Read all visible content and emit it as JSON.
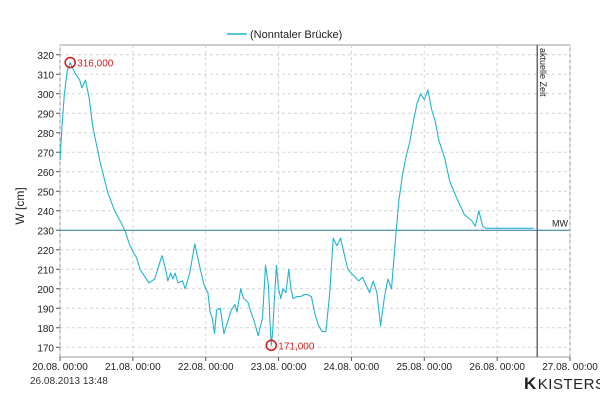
{
  "footer": {
    "timestamp": "26.08.2013  13:48",
    "logo_mark": "K",
    "logo_text": "KISTERS"
  },
  "chart_data": {
    "type": "line",
    "title": "",
    "legend": "(Nonntaler Brücke)",
    "legend_position": "top",
    "xlabel": "",
    "ylabel": "W [cm]",
    "grid": true,
    "xlim": [
      0,
      7
    ],
    "ylim": [
      165,
      325
    ],
    "x_tick_labels": [
      "20.08. 00:00",
      "21.08. 00:00",
      "22.08. 00:00",
      "23.08. 00:00",
      "24.08. 00:00",
      "25.08. 00:00",
      "26.08. 00:00",
      "27.08. 00:00"
    ],
    "y_ticks": [
      170,
      180,
      190,
      200,
      210,
      220,
      230,
      240,
      250,
      260,
      270,
      280,
      290,
      300,
      310,
      320
    ],
    "colors": {
      "series": "#22b4d0",
      "mw_line": "#2f7fa0",
      "current_time_line": "#555555",
      "annotation": "#d42020"
    },
    "mw_line": {
      "value": 230,
      "label": "MW"
    },
    "current_time_line": {
      "x": 6.55,
      "label": "aktuelle Zeit"
    },
    "annotations": [
      {
        "x": 0.14,
        "y": 316,
        "label": "316,000",
        "kind": "max"
      },
      {
        "x": 2.9,
        "y": 171,
        "label": "171,000",
        "kind": "min"
      }
    ],
    "series": [
      {
        "name": "(Nonntaler Brücke)",
        "x": [
          0,
          0.03,
          0.06,
          0.1,
          0.14,
          0.2,
          0.27,
          0.3,
          0.35,
          0.4,
          0.45,
          0.55,
          0.65,
          0.75,
          0.85,
          0.9,
          0.95,
          1.0,
          1.05,
          1.1,
          1.15,
          1.22,
          1.3,
          1.4,
          1.45,
          1.48,
          1.52,
          1.55,
          1.58,
          1.62,
          1.68,
          1.72,
          1.78,
          1.85,
          1.92,
          1.97,
          2.0,
          2.03,
          2.06,
          2.09,
          2.12,
          2.15,
          2.2,
          2.25,
          2.3,
          2.35,
          2.4,
          2.43,
          2.48,
          2.52,
          2.58,
          2.62,
          2.66,
          2.72,
          2.78,
          2.82,
          2.86,
          2.88,
          2.9,
          2.92,
          2.94,
          2.97,
          3.0,
          3.03,
          3.06,
          3.1,
          3.14,
          3.17,
          3.2,
          3.25,
          3.3,
          3.35,
          3.4,
          3.45,
          3.5,
          3.55,
          3.6,
          3.65,
          3.7,
          3.75,
          3.8,
          3.85,
          3.9,
          3.95,
          4.05,
          4.1,
          4.15,
          4.25,
          4.3,
          4.35,
          4.4,
          4.45,
          4.5,
          4.55,
          4.6,
          4.65,
          4.7,
          4.75,
          4.8,
          4.85,
          4.9,
          4.95,
          5.0,
          5.05,
          5.1,
          5.15,
          5.2,
          5.28,
          5.35,
          5.45,
          5.55,
          5.65,
          5.7,
          5.75,
          5.8,
          5.85,
          5.9,
          5.95,
          6.0,
          6.05,
          6.1,
          6.15,
          6.2,
          6.25,
          6.3,
          6.35,
          6.4,
          6.45,
          6.5
        ],
        "y": [
          266,
          285,
          300,
          312,
          316,
          311,
          307,
          303,
          307,
          298,
          283,
          265,
          250,
          240,
          233,
          229,
          223,
          219,
          216,
          210,
          207,
          203,
          205,
          217,
          210,
          204,
          208,
          205,
          208,
          203,
          204,
          200,
          208,
          223,
          211,
          203,
          200,
          198,
          188,
          185,
          177,
          189,
          190,
          177,
          183,
          189,
          192,
          188,
          200,
          195,
          193,
          188,
          184,
          176,
          185,
          212,
          202,
          185,
          171,
          178,
          193,
          212,
          200,
          195,
          200,
          198,
          210,
          200,
          195,
          196,
          196,
          197,
          197,
          196,
          187,
          181,
          178,
          178,
          197,
          226,
          222,
          226,
          218,
          210,
          206,
          204,
          206,
          198,
          204,
          198,
          181,
          195,
          205,
          200,
          223,
          245,
          258,
          268,
          275,
          286,
          295,
          300,
          297,
          302,
          292,
          286,
          276,
          267,
          255,
          246,
          238,
          235,
          232,
          240,
          232,
          231,
          231,
          231,
          231,
          231,
          231,
          231,
          231,
          231,
          231,
          231,
          231,
          231,
          231
        ]
      }
    ]
  }
}
